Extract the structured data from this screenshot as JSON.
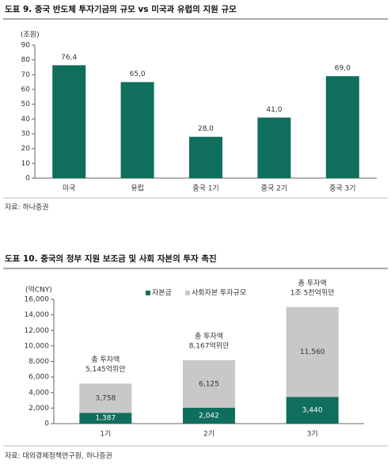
{
  "chart_data": [
    {
      "type": "bar",
      "title": "도표 9. 중국 반도체 투자기금의 규모 vs 미국과 유럽의 지원 규모",
      "y_label": "(조원)",
      "categories": [
        "미국",
        "유럽",
        "중국 1기",
        "중국 2기",
        "중국 3기"
      ],
      "values": [
        76.4,
        65.0,
        28.0,
        41.0,
        69.0
      ],
      "value_labels": [
        "76,4",
        "65,0",
        "28,0",
        "41,0",
        "69,0"
      ],
      "color": "#0f6e5c",
      "ylim": [
        0,
        90
      ],
      "yticks": [
        0,
        10,
        20,
        30,
        40,
        50,
        60,
        70,
        80,
        90
      ],
      "source": "자료: 하나증권"
    },
    {
      "type": "stacked_bar",
      "title": "도표 10. 중국의 정부 지원 보조금 및 사회 자본의 투자 촉진",
      "y_label": "(억CNY)",
      "categories": [
        "1기",
        "2기",
        "3기"
      ],
      "series": [
        {
          "name": "자본금",
          "color": "#0f6e5c",
          "values": [
            1387,
            2042,
            3440
          ],
          "value_labels": [
            "1,387",
            "2,042",
            "3,440"
          ]
        },
        {
          "name": "사회자본 투자규모",
          "color": "#c8c8c8",
          "values": [
            3758,
            6125,
            11560
          ],
          "value_labels": [
            "3,758",
            "6,125",
            "11,560"
          ]
        }
      ],
      "annotations": [
        [
          "총 투자액",
          "5,145억위안"
        ],
        [
          "총 투자액",
          "8,167억위안"
        ],
        [
          "총 투자액",
          "1조 5천억위안"
        ]
      ],
      "ylim": [
        0,
        16000
      ],
      "yticks": [
        0,
        {
          "value": 2000,
          "label": "2,000"
        },
        {
          "value": 4000,
          "label": "4,000"
        },
        {
          "value": 6000,
          "label": "6,000"
        },
        {
          "value": 8000,
          "label": "8,000"
        },
        {
          "value": 10000,
          "label": "10,000"
        },
        {
          "value": 12000,
          "label": "12,000"
        },
        {
          "value": 14000,
          "label": "14,000"
        },
        {
          "value": 16000,
          "label": "16,000"
        }
      ],
      "source": "자료: 대외경제정책연구원, 하나증권"
    }
  ]
}
